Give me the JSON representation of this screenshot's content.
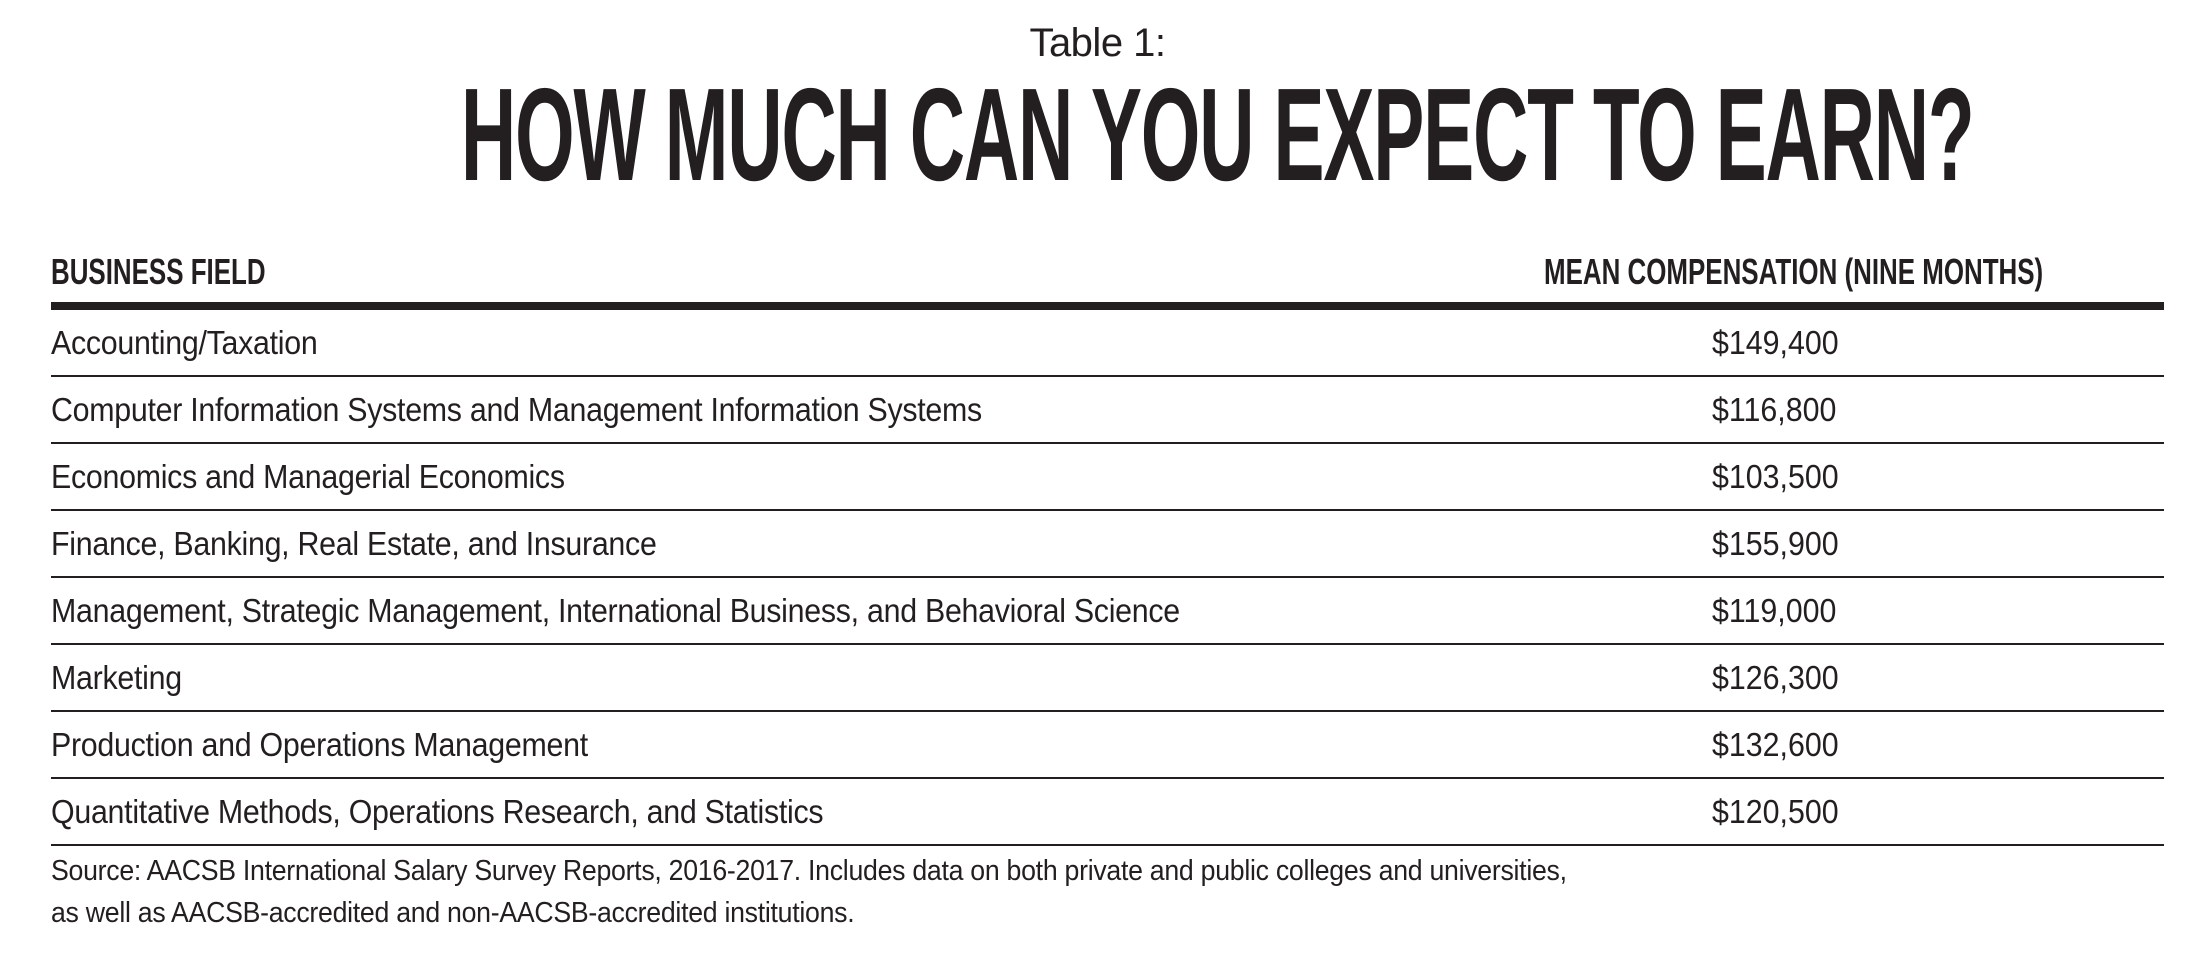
{
  "header": {
    "table_label": "Table 1:",
    "title": "HOW MUCH CAN YOU EXPECT TO EARN?"
  },
  "table": {
    "columns": [
      "BUSINESS FIELD",
      "MEAN COMPENSATION (NINE MONTHS)"
    ],
    "rows": [
      {
        "field": "Accounting/Taxation",
        "compensation": "$149,400"
      },
      {
        "field": "Computer Information Systems and Management Information Systems",
        "compensation": "$116,800"
      },
      {
        "field": "Economics and Managerial Economics",
        "compensation": "$103,500"
      },
      {
        "field": "Finance, Banking, Real Estate, and Insurance",
        "compensation": "$155,900"
      },
      {
        "field": "Management, Strategic Management, International Business, and Behavioral Science",
        "compensation": "$119,000"
      },
      {
        "field": "Marketing",
        "compensation": "$126,300"
      },
      {
        "field": "Production and Operations Management",
        "compensation": "$132,600"
      },
      {
        "field": "Quantitative Methods, Operations Research, and Statistics",
        "compensation": "$120,500"
      }
    ]
  },
  "source": {
    "line1": "Source: AACSB International Salary Survey Reports, 2016-2017. Includes data on both private and public colleges and universities,",
    "line2": "as well as AACSB-accredited and non-AACSB-accredited institutions."
  }
}
